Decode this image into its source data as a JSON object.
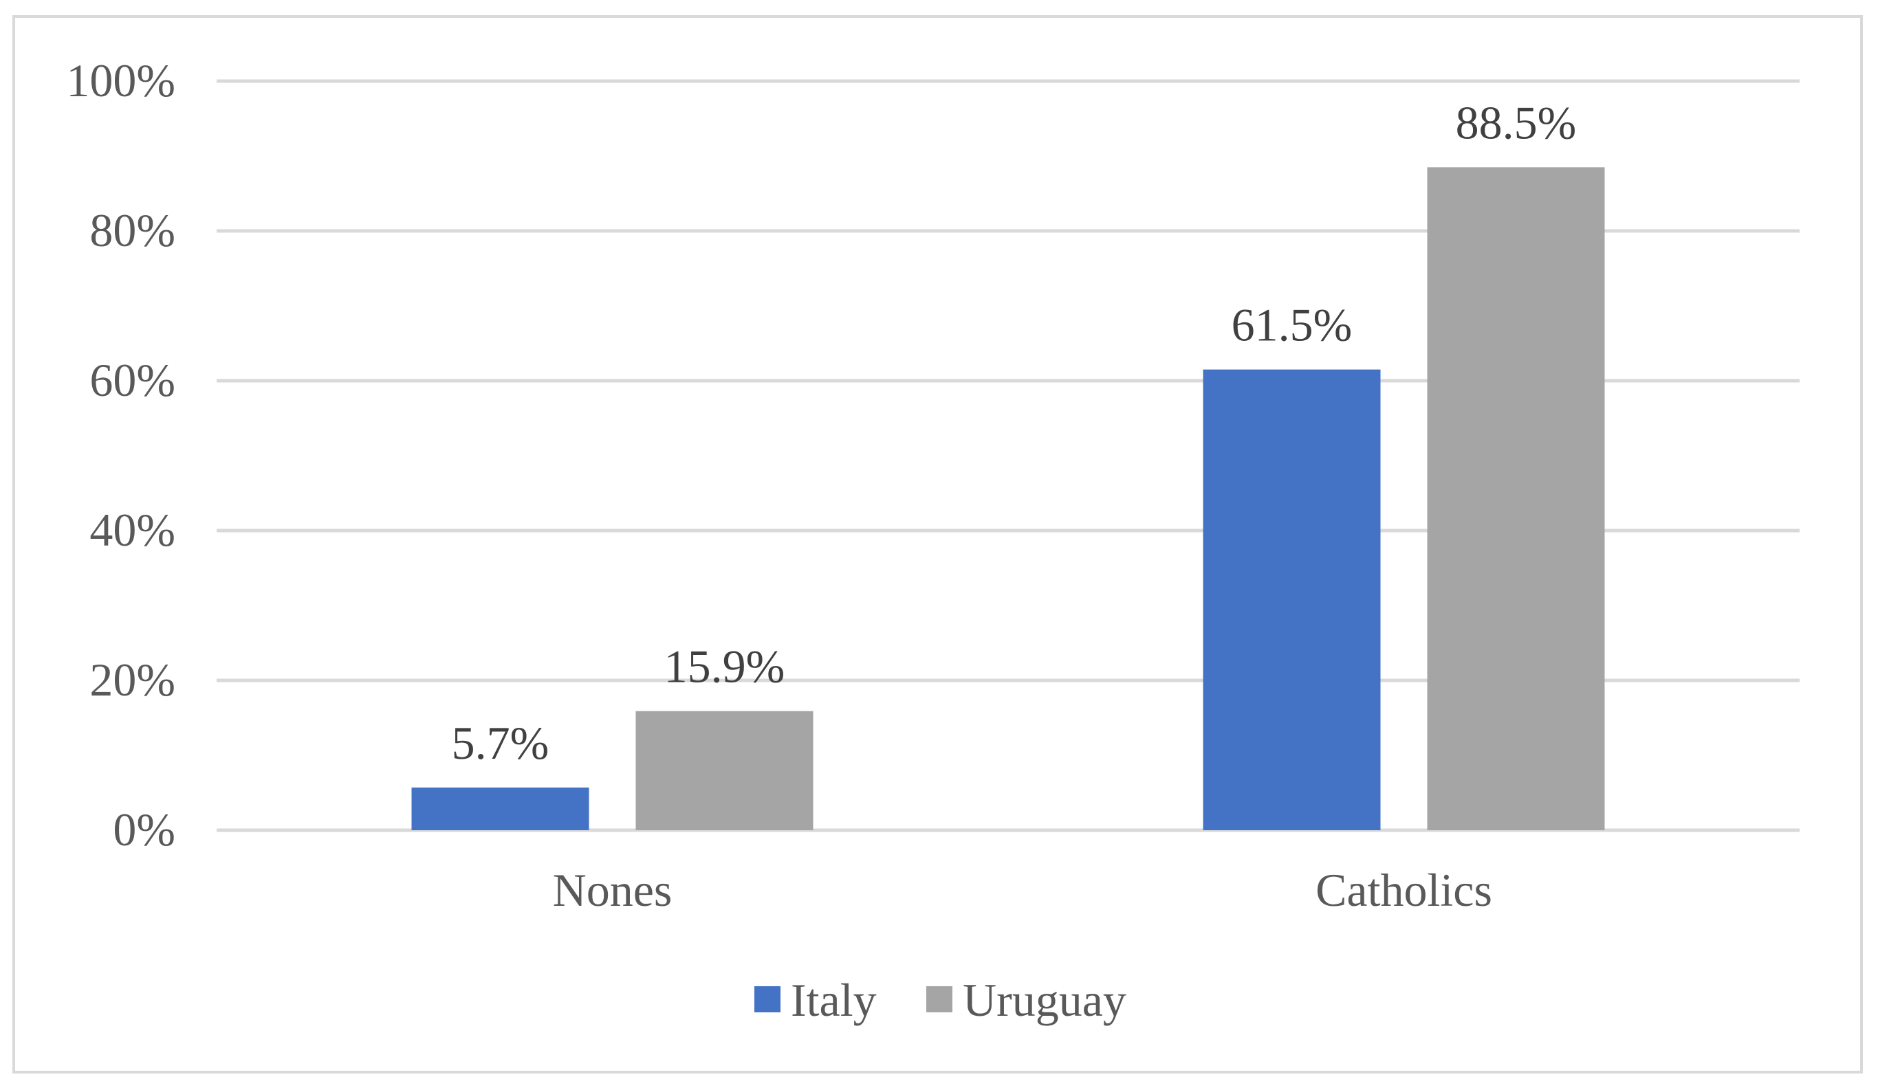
{
  "chart_data": {
    "type": "bar",
    "categories": [
      "Nones",
      "Catholics"
    ],
    "series": [
      {
        "name": "Italy",
        "values": [
          5.7,
          61.5
        ],
        "labels": [
          "5.7%",
          "61.5%"
        ],
        "color": "#4472c4"
      },
      {
        "name": "Uruguay",
        "values": [
          15.9,
          88.5
        ],
        "labels": [
          "15.9%",
          "88.5%"
        ],
        "color": "#a5a5a5"
      }
    ],
    "ylim": [
      0,
      100
    ],
    "yticks": [
      0,
      20,
      40,
      60,
      80,
      100
    ],
    "ytick_labels": [
      "0%",
      "20%",
      "40%",
      "60%",
      "80%",
      "100%"
    ],
    "grid": true,
    "gridline_color": "#d9d9d9",
    "legend_position": "bottom"
  }
}
